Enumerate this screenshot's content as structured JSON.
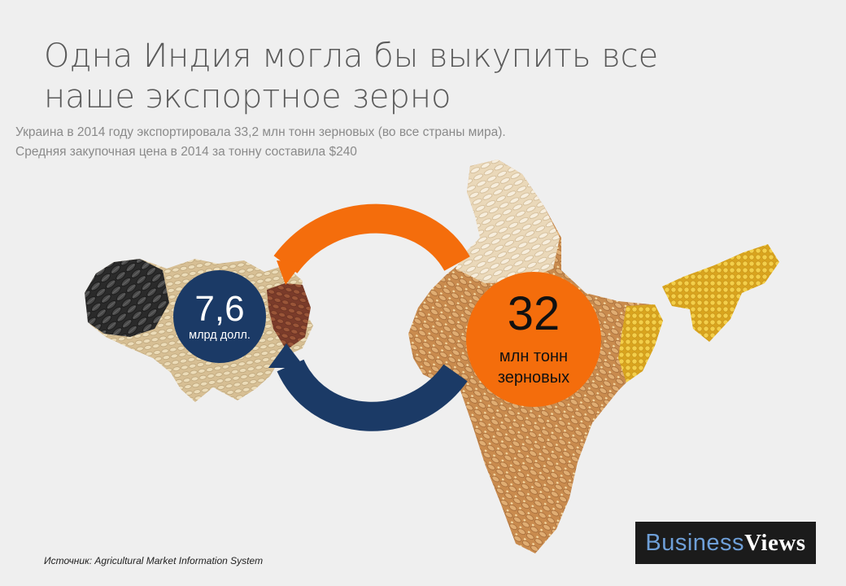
{
  "title": "Одна Индия могла бы выкупить все наше экспортное зерно",
  "subtitle": {
    "line1": "Украина в 2014 году экспортировала 33,2 млн тонн зерновых (во все страны мира).",
    "line2": "Средняя закупочная цена в 2014 за тонну составила $240"
  },
  "ukraine_bubble": {
    "value": "7,6",
    "unit": "млрд долл."
  },
  "india_bubble": {
    "value": "32",
    "unit_line1": "млн тонн",
    "unit_line2": "зерновых"
  },
  "source": "Источник: Agricultural Market Information System",
  "logo": {
    "part1": "Business",
    "part2": "Views"
  },
  "colors": {
    "background": "#efefef",
    "navy": "#1b3a66",
    "orange": "#f46d0c",
    "grain_light": "#e7d3b3",
    "grain_dark": "#c08a4e",
    "grain_yellow": "#e9b72c"
  }
}
